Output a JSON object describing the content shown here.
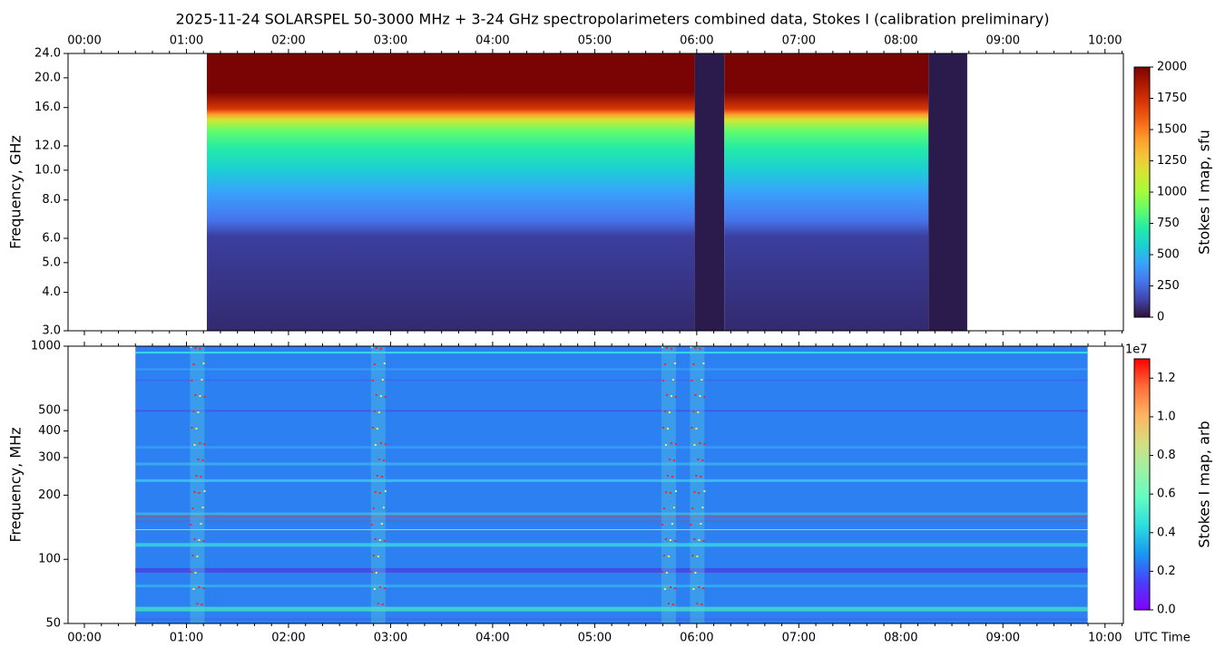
{
  "title": "2025-11-24  SOLARSPEL  50-3000 MHz  +  3-24 GHz  spectropolarimeters combined data,  Stokes I  (calibration preliminary)",
  "chart_data": [
    {
      "type": "heatmap",
      "ylabel": "Frequency, GHz",
      "log_y": true,
      "ylim": [
        3,
        24
      ],
      "yticks": [
        {
          "value": 3,
          "label": "3.0"
        },
        {
          "value": 4,
          "label": "4.0"
        },
        {
          "value": 5,
          "label": "5.0"
        },
        {
          "value": 6,
          "label": "6.0"
        },
        {
          "value": 8,
          "label": "8.0"
        },
        {
          "value": 10,
          "label": "10.0"
        },
        {
          "value": 12,
          "label": "12.0"
        },
        {
          "value": 16,
          "label": "16.0"
        },
        {
          "value": 20,
          "label": "20.0"
        },
        {
          "value": 24,
          "label": "24.0"
        }
      ],
      "xlim": [
        -0.16,
        10.18
      ],
      "xticks": [
        {
          "value": 0,
          "label": "00:00"
        },
        {
          "value": 1,
          "label": "01:00"
        },
        {
          "value": 2,
          "label": "02:00"
        },
        {
          "value": 3,
          "label": "03:00"
        },
        {
          "value": 4,
          "label": "04:00"
        },
        {
          "value": 5,
          "label": "05:00"
        },
        {
          "value": 6,
          "label": "06:00"
        },
        {
          "value": 7,
          "label": "07:00"
        },
        {
          "value": 8,
          "label": "08:00"
        },
        {
          "value": 9,
          "label": "09:00"
        },
        {
          "value": 10,
          "label": "10:00"
        }
      ],
      "xtick_side": "top",
      "x": [
        1.2,
        5.98,
        6.27,
        8.27,
        8.65
      ],
      "colormap": "turbo",
      "zlim": [
        0,
        2000
      ],
      "zticks": [
        0,
        250,
        500,
        750,
        1000,
        1250,
        1500,
        1750,
        2000
      ],
      "zlabel": "Stokes I map, sfu"
    },
    {
      "type": "heatmap",
      "ylabel": "Frequency, MHz",
      "log_y": true,
      "ylim": [
        50,
        1000
      ],
      "yticks": [
        50,
        100,
        200,
        300,
        400,
        500,
        1000
      ],
      "xlim": [
        -0.16,
        10.18
      ],
      "xticks": [
        {
          "value": 0,
          "label": "00:00"
        },
        {
          "value": 1,
          "label": "01:00"
        },
        {
          "value": 2,
          "label": "02:00"
        },
        {
          "value": 3,
          "label": "03:00"
        },
        {
          "value": 4,
          "label": "04:00"
        },
        {
          "value": 5,
          "label": "05:00"
        },
        {
          "value": 6,
          "label": "06:00"
        },
        {
          "value": 7,
          "label": "07:00"
        },
        {
          "value": 8,
          "label": "08:00"
        },
        {
          "value": 9,
          "label": "09:00"
        },
        {
          "value": 10,
          "label": "10:00"
        }
      ],
      "xtick_side": "bottom",
      "xlabel": "UTC Time",
      "x": [
        0.5,
        9.83
      ],
      "colormap": "rainbow",
      "zlim": [
        0,
        1.3
      ],
      "zticks": [
        {
          "value": 0,
          "label": "0.0"
        },
        0.2,
        0.4,
        0.6,
        0.8,
        {
          "value": 1,
          "label": "1.0"
        },
        1.2
      ],
      "zscale_label": "1e7",
      "zlabel": "Stokes I map, arb"
    }
  ]
}
